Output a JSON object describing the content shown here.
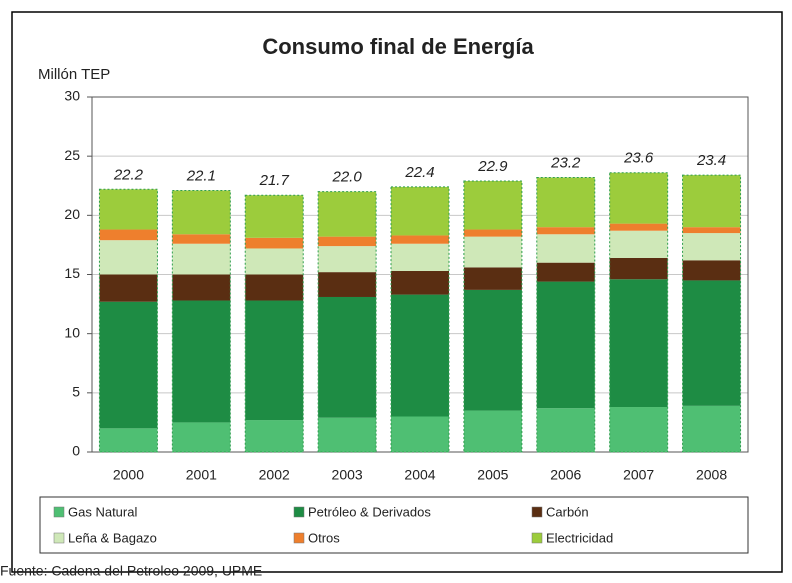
{
  "chart_data": {
    "type": "stacked_bar",
    "title": "Consumo final de Energía",
    "y_label": "Millón TEP",
    "categories": [
      "2000",
      "2001",
      "2002",
      "2003",
      "2004",
      "2005",
      "2006",
      "2007",
      "2008"
    ],
    "series": [
      {
        "name": "Gas Natural",
        "color": "#4fbf73",
        "values": [
          2.0,
          2.5,
          2.7,
          2.9,
          3.0,
          3.5,
          3.7,
          3.8,
          3.9
        ]
      },
      {
        "name": "Petróleo & Derivados",
        "color": "#1e8c44",
        "values": [
          10.7,
          10.3,
          10.1,
          10.2,
          10.3,
          10.2,
          10.7,
          10.8,
          10.6
        ]
      },
      {
        "name": "Carbón",
        "color": "#5a2e12",
        "values": [
          2.3,
          2.2,
          2.2,
          2.1,
          2.0,
          1.9,
          1.6,
          1.8,
          1.7
        ]
      },
      {
        "name": "Leña & Bagazo",
        "color": "#cfe8b8",
        "values": [
          2.9,
          2.6,
          2.2,
          2.2,
          2.3,
          2.6,
          2.4,
          2.3,
          2.3
        ]
      },
      {
        "name": "Otros",
        "color": "#ee7f2d",
        "values": [
          0.9,
          0.8,
          0.9,
          0.8,
          0.7,
          0.6,
          0.6,
          0.6,
          0.5
        ]
      },
      {
        "name": "Electricidad",
        "color": "#9ccc3c",
        "values": [
          3.4,
          3.7,
          3.6,
          3.8,
          4.1,
          4.1,
          4.2,
          4.3,
          4.4
        ]
      }
    ],
    "totals": [
      22.2,
      22.1,
      21.7,
      22.0,
      22.4,
      22.9,
      23.2,
      23.6,
      23.4
    ],
    "total_labels": [
      "22.2",
      "22.1",
      "21.7",
      "22.0",
      "22.4",
      "22.9",
      "23.2",
      "23.6",
      "23.4"
    ],
    "ylim": [
      0,
      30
    ],
    "yticks": [
      0,
      5,
      10,
      15,
      20,
      25,
      30
    ],
    "grid": true,
    "source": "Fuente: Cadena del Petroleo 2009, UPME"
  }
}
